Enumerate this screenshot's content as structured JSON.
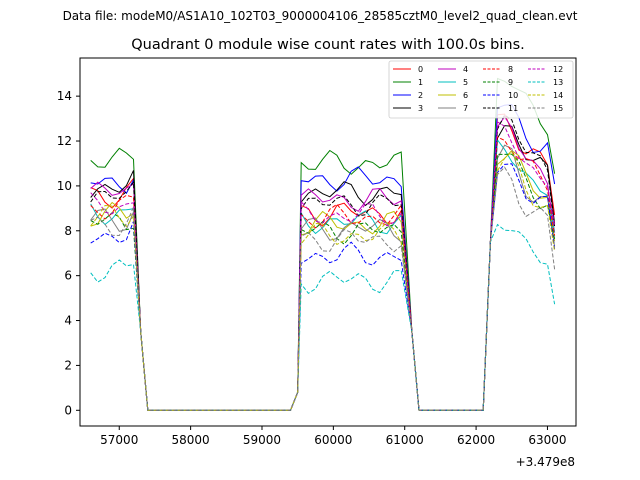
{
  "figure": {
    "suptitle": "Data file: modeM0/AS1A10_102T03_9000004106_28585cztM0_level2_quad_clean.evt"
  },
  "chart_data": {
    "type": "line",
    "title": "Quadrant 0 module wise count rates with 100.0s bins.",
    "xlabel": "",
    "ylabel": "",
    "x_offset_label": "+3.479e8",
    "x_tick_labels": [
      "57000",
      "58000",
      "59000",
      "60000",
      "61000",
      "62000",
      "63000"
    ],
    "y_tick_labels": [
      "0",
      "2",
      "4",
      "6",
      "8",
      "10",
      "12",
      "14"
    ],
    "xlim": [
      56450,
      63400
    ],
    "ylim": [
      -0.7,
      15.7
    ],
    "grid": false,
    "legend_placement": "top-right",
    "segments": [
      {
        "start": 56600,
        "end": 57200
      },
      {
        "start": 59550,
        "end": 61000
      },
      {
        "start": 62300,
        "end": 63100
      }
    ],
    "bin_step": 100,
    "gap_points": [
      [
        57300,
        3.5
      ],
      [
        57400,
        0
      ],
      [
        59400,
        0
      ],
      [
        59500,
        0.8
      ],
      [
        61100,
        3.5
      ],
      [
        61200,
        0
      ],
      [
        62100,
        0
      ],
      [
        62200,
        7.5
      ]
    ],
    "series": [
      {
        "name": "0",
        "color": "#ff0000",
        "dash": "solid",
        "levels": [
          9.6,
          8.8,
          12.4
        ],
        "phase": 0.4
      },
      {
        "name": "1",
        "color": "#008000",
        "dash": "solid",
        "levels": [
          11.1,
          11.0,
          14.3
        ],
        "phase": 1.1
      },
      {
        "name": "2",
        "color": "#0000ff",
        "dash": "solid",
        "levels": [
          10.2,
          10.3,
          13.1
        ],
        "phase": 2.0
      },
      {
        "name": "3",
        "color": "#000000",
        "dash": "solid",
        "levels": [
          9.9,
          9.7,
          12.1
        ],
        "phase": 2.7
      },
      {
        "name": "4",
        "color": "#bf00bf",
        "dash": "solid",
        "levels": [
          9.7,
          9.4,
          12.0
        ],
        "phase": 3.3
      },
      {
        "name": "5",
        "color": "#00bfbf",
        "dash": "solid",
        "levels": [
          8.8,
          8.4,
          11.2
        ],
        "phase": 4.1
      },
      {
        "name": "6",
        "color": "#bfbf00",
        "dash": "solid",
        "levels": [
          8.7,
          8.3,
          11.0
        ],
        "phase": 4.9
      },
      {
        "name": "7",
        "color": "#808080",
        "dash": "solid",
        "levels": [
          8.5,
          8.1,
          10.8
        ],
        "phase": 5.6
      },
      {
        "name": "8",
        "color": "#ff0000",
        "dash": "dashed",
        "levels": [
          9.0,
          8.6,
          11.6
        ],
        "phase": 0.8
      },
      {
        "name": "9",
        "color": "#008000",
        "dash": "dashed",
        "levels": [
          8.4,
          8.0,
          10.9
        ],
        "phase": 1.6
      },
      {
        "name": "10",
        "color": "#0000ff",
        "dash": "dashed",
        "levels": [
          7.8,
          6.9,
          10.5
        ],
        "phase": 2.4
      },
      {
        "name": "11",
        "color": "#000000",
        "dash": "dashed",
        "levels": [
          9.5,
          9.2,
          12.3
        ],
        "phase": 3.0
      },
      {
        "name": "12",
        "color": "#bf00bf",
        "dash": "dashed",
        "levels": [
          9.1,
          8.7,
          11.8
        ],
        "phase": 3.8
      },
      {
        "name": "13",
        "color": "#00bfbf",
        "dash": "dashed",
        "levels": [
          6.3,
          5.8,
          8.0
        ],
        "phase": 4.5
      },
      {
        "name": "14",
        "color": "#bfbf00",
        "dash": "dashed",
        "levels": [
          8.6,
          7.8,
          10.6
        ],
        "phase": 5.2
      },
      {
        "name": "15",
        "color": "#808080",
        "dash": "dashed",
        "levels": [
          8.3,
          7.6,
          9.9
        ],
        "phase": 6.0
      }
    ]
  }
}
